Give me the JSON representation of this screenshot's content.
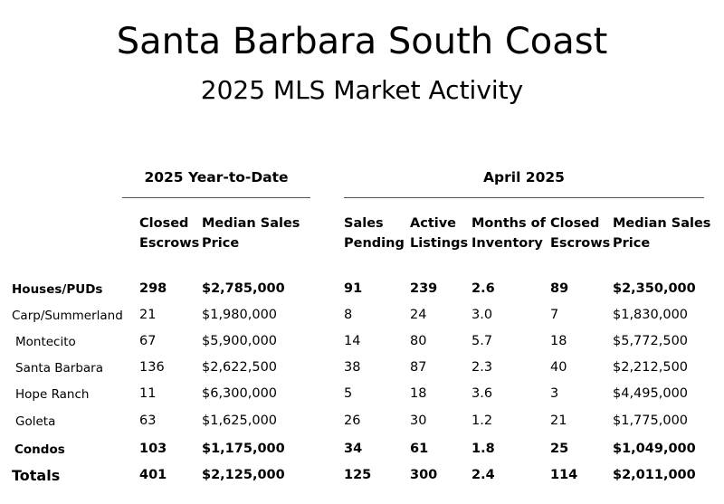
{
  "title": "Santa Barbara South Coast",
  "subtitle": "2025 MLS Market Activity",
  "groups": {
    "ytd": "2025 Year-to-Date",
    "month": "April 2025"
  },
  "headers": [
    [
      "Closed",
      "Escrows"
    ],
    [
      "Median Sales",
      "Price"
    ],
    [
      "Sales",
      "Pending"
    ],
    [
      "Active",
      "Listings"
    ],
    [
      "Months of",
      "Inventory"
    ],
    [
      "Closed",
      "Escrows"
    ],
    [
      "Median Sales",
      "Price"
    ]
  ],
  "rows": [
    {
      "label": "Houses/PUDs",
      "bold": true,
      "values": [
        "298",
        "$2,785,000",
        "91",
        "239",
        "2.6",
        "89",
        "$2,350,000"
      ]
    },
    {
      "label": "Carp/Summerland",
      "bold": false,
      "values": [
        "21",
        "$1,980,000",
        "8",
        "24",
        "3.0",
        "7",
        "$1,830,000"
      ]
    },
    {
      "label": "Montecito",
      "bold": false,
      "values": [
        "67",
        "$5,900,000",
        "14",
        "80",
        "5.7",
        "18",
        "$5,772,500"
      ]
    },
    {
      "label": "Santa Barbara",
      "bold": false,
      "values": [
        "136",
        "$2,622,500",
        "38",
        "87",
        "2.3",
        "40",
        "$2,212,500"
      ]
    },
    {
      "label": "Hope Ranch",
      "bold": false,
      "values": [
        "11",
        "$6,300,000",
        "5",
        "18",
        "3.6",
        "3",
        "$4,495,000"
      ]
    },
    {
      "label": "Goleta",
      "bold": false,
      "values": [
        "63",
        "$1,625,000",
        "26",
        "30",
        "1.2",
        "21",
        "$1,775,000"
      ]
    },
    {
      "label": "Condos",
      "bold": true,
      "values": [
        "103",
        "$1,175,000",
        "34",
        "61",
        "1.8",
        "25",
        "$1,049,000"
      ]
    },
    {
      "label": "Totals",
      "bold": true,
      "values": [
        "401",
        "$2,125,000",
        "125",
        "300",
        "2.4",
        "114",
        "$2,011,000"
      ]
    }
  ]
}
